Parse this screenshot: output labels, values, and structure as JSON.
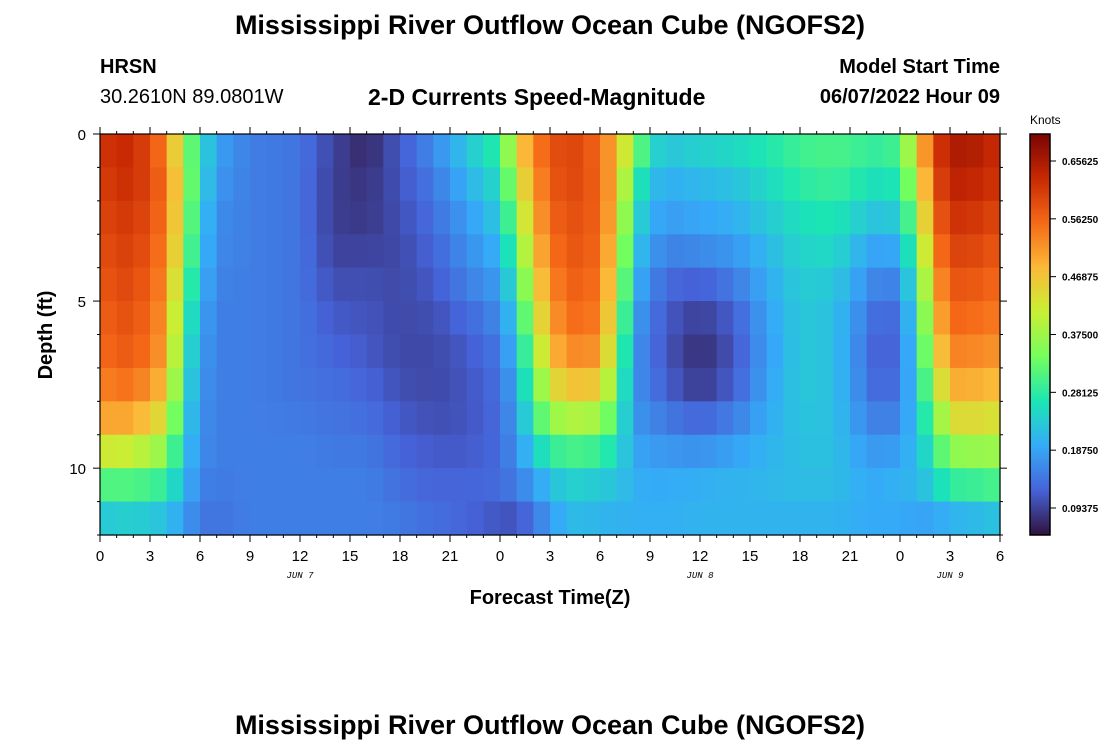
{
  "page": {
    "title_top": "Mississippi River Outflow Ocean Cube (NGOFS2)",
    "title_bottom": "Mississippi River Outflow Ocean Cube (NGOFS2)",
    "station": {
      "name": "HRSN",
      "coords": "30.2610N  89.0801W"
    },
    "plot_title": "2-D Currents Speed-Magnitude",
    "model_start": {
      "label": "Model Start Time",
      "value": "06/07/2022 Hour 09"
    }
  },
  "chart_data": {
    "type": "heatmap",
    "title": "2-D Currents Speed-Magnitude",
    "xlabel": "Forecast Time(Z)",
    "ylabel": "Depth (ft)",
    "x_unit": "hours from 06/07 00Z",
    "xlim": [
      0,
      54
    ],
    "ylim": [
      0,
      12
    ],
    "y_reversed": true,
    "x_tick_labels": [
      "0",
      "3",
      "6",
      "9",
      "12",
      "15",
      "18",
      "21",
      "0",
      "3",
      "6",
      "9",
      "12",
      "15",
      "18",
      "21",
      "0",
      "3",
      "6"
    ],
    "date_labels": [
      {
        "x": 12,
        "text": "JUN 7"
      },
      {
        "x": 36,
        "text": "JUN 8"
      },
      {
        "x": 51,
        "text": "JUN 9"
      }
    ],
    "y_ticks": [
      0,
      5,
      10
    ],
    "colorbar": {
      "unit": "Knots",
      "min": 0.05,
      "max": 0.7,
      "tick_labels": [
        "0.65625",
        "0.56250",
        "0.46875",
        "0.37500",
        "0.28125",
        "0.18750",
        "0.09375"
      ],
      "colors": [
        "#30123b",
        "#4662d8",
        "#35abf8",
        "#1be5b5",
        "#74fe5d",
        "#c9ef34",
        "#fbb938",
        "#f56918",
        "#c92903",
        "#7a0403"
      ]
    },
    "time_knots": [
      0,
      2,
      4,
      5,
      6,
      7,
      9,
      12,
      14,
      16,
      18,
      20,
      22,
      24,
      25,
      26,
      27,
      28,
      29,
      30,
      31,
      32,
      33,
      34,
      36,
      38,
      40,
      42,
      44,
      46,
      47,
      48,
      49,
      50,
      51,
      53,
      54
    ],
    "depth_knots": [
      0,
      1,
      2,
      3,
      4,
      5,
      6,
      7,
      8,
      9,
      10,
      11,
      12
    ],
    "speed_knots": [
      [
        0.62,
        0.61,
        0.6,
        0.59,
        0.58,
        0.57,
        0.56,
        0.55,
        0.52,
        0.48,
        0.36,
        0.26,
        0.2
      ],
      [
        0.63,
        0.63,
        0.62,
        0.61,
        0.6,
        0.59,
        0.58,
        0.57,
        0.53,
        0.47,
        0.35,
        0.27,
        0.21
      ],
      [
        0.52,
        0.55,
        0.55,
        0.54,
        0.53,
        0.52,
        0.51,
        0.5,
        0.45,
        0.4,
        0.32,
        0.25,
        0.19
      ],
      [
        0.36,
        0.4,
        0.4,
        0.38,
        0.36,
        0.32,
        0.3,
        0.28,
        0.26,
        0.24,
        0.22,
        0.2,
        0.17
      ],
      [
        0.26,
        0.26,
        0.24,
        0.23,
        0.22,
        0.2,
        0.19,
        0.18,
        0.17,
        0.17,
        0.16,
        0.15,
        0.14
      ],
      [
        0.19,
        0.18,
        0.17,
        0.16,
        0.16,
        0.15,
        0.15,
        0.15,
        0.15,
        0.15,
        0.15,
        0.14,
        0.14
      ],
      [
        0.15,
        0.15,
        0.15,
        0.15,
        0.15,
        0.15,
        0.15,
        0.15,
        0.15,
        0.15,
        0.15,
        0.15,
        0.15
      ],
      [
        0.14,
        0.14,
        0.14,
        0.14,
        0.14,
        0.14,
        0.14,
        0.14,
        0.14,
        0.15,
        0.15,
        0.15,
        0.15
      ],
      [
        0.1,
        0.09,
        0.09,
        0.09,
        0.1,
        0.11,
        0.12,
        0.13,
        0.14,
        0.14,
        0.15,
        0.15,
        0.15
      ],
      [
        0.06,
        0.08,
        0.08,
        0.09,
        0.1,
        0.11,
        0.11,
        0.12,
        0.13,
        0.14,
        0.15,
        0.15,
        0.15
      ],
      [
        0.12,
        0.11,
        0.11,
        0.1,
        0.1,
        0.1,
        0.1,
        0.1,
        0.11,
        0.12,
        0.13,
        0.14,
        0.15
      ],
      [
        0.17,
        0.15,
        0.14,
        0.13,
        0.12,
        0.11,
        0.1,
        0.1,
        0.1,
        0.11,
        0.12,
        0.13,
        0.14
      ],
      [
        0.24,
        0.21,
        0.19,
        0.17,
        0.16,
        0.14,
        0.12,
        0.11,
        0.11,
        0.11,
        0.12,
        0.13,
        0.12
      ],
      [
        0.3,
        0.27,
        0.24,
        0.22,
        0.19,
        0.17,
        0.15,
        0.14,
        0.13,
        0.13,
        0.13,
        0.13,
        0.09
      ],
      [
        0.46,
        0.42,
        0.38,
        0.34,
        0.3,
        0.26,
        0.23,
        0.21,
        0.19,
        0.18,
        0.16,
        0.14,
        0.08
      ],
      [
        0.54,
        0.52,
        0.5,
        0.48,
        0.45,
        0.42,
        0.38,
        0.34,
        0.3,
        0.26,
        0.2,
        0.16,
        0.12
      ],
      [
        0.58,
        0.57,
        0.56,
        0.55,
        0.53,
        0.51,
        0.49,
        0.46,
        0.4,
        0.33,
        0.24,
        0.19,
        0.17
      ],
      [
        0.6,
        0.6,
        0.59,
        0.58,
        0.57,
        0.56,
        0.54,
        0.5,
        0.43,
        0.34,
        0.26,
        0.22,
        0.2
      ],
      [
        0.58,
        0.59,
        0.58,
        0.58,
        0.57,
        0.56,
        0.55,
        0.51,
        0.44,
        0.35,
        0.26,
        0.22,
        0.21
      ],
      [
        0.55,
        0.56,
        0.56,
        0.56,
        0.55,
        0.54,
        0.53,
        0.49,
        0.42,
        0.32,
        0.25,
        0.21,
        0.2
      ],
      [
        0.48,
        0.48,
        0.47,
        0.45,
        0.43,
        0.41,
        0.38,
        0.35,
        0.32,
        0.28,
        0.24,
        0.21,
        0.2
      ],
      [
        0.4,
        0.32,
        0.28,
        0.25,
        0.22,
        0.2,
        0.18,
        0.17,
        0.17,
        0.18,
        0.2,
        0.2,
        0.2
      ],
      [
        0.28,
        0.23,
        0.21,
        0.19,
        0.17,
        0.15,
        0.14,
        0.14,
        0.15,
        0.17,
        0.19,
        0.2,
        0.2
      ],
      [
        0.24,
        0.21,
        0.19,
        0.17,
        0.14,
        0.12,
        0.11,
        0.11,
        0.13,
        0.16,
        0.19,
        0.2,
        0.2
      ],
      [
        0.26,
        0.22,
        0.2,
        0.18,
        0.14,
        0.1,
        0.08,
        0.07,
        0.1,
        0.15,
        0.19,
        0.21,
        0.2
      ],
      [
        0.27,
        0.23,
        0.21,
        0.19,
        0.16,
        0.13,
        0.11,
        0.11,
        0.13,
        0.17,
        0.2,
        0.21,
        0.2
      ],
      [
        0.28,
        0.26,
        0.24,
        0.22,
        0.2,
        0.19,
        0.18,
        0.18,
        0.19,
        0.2,
        0.21,
        0.21,
        0.2
      ],
      [
        0.3,
        0.29,
        0.27,
        0.25,
        0.24,
        0.23,
        0.23,
        0.23,
        0.23,
        0.22,
        0.22,
        0.21,
        0.2
      ],
      [
        0.31,
        0.3,
        0.28,
        0.26,
        0.24,
        0.22,
        0.22,
        0.22,
        0.22,
        0.22,
        0.22,
        0.21,
        0.2
      ],
      [
        0.3,
        0.28,
        0.25,
        0.21,
        0.18,
        0.16,
        0.14,
        0.14,
        0.15,
        0.17,
        0.19,
        0.2,
        0.19
      ],
      [
        0.3,
        0.27,
        0.24,
        0.2,
        0.16,
        0.13,
        0.11,
        0.11,
        0.13,
        0.16,
        0.19,
        0.2,
        0.19
      ],
      [
        0.32,
        0.29,
        0.26,
        0.22,
        0.18,
        0.15,
        0.14,
        0.14,
        0.15,
        0.17,
        0.2,
        0.21,
        0.18
      ],
      [
        0.46,
        0.42,
        0.38,
        0.34,
        0.3,
        0.27,
        0.25,
        0.24,
        0.23,
        0.22,
        0.21,
        0.2,
        0.17
      ],
      [
        0.6,
        0.58,
        0.56,
        0.53,
        0.5,
        0.47,
        0.44,
        0.4,
        0.35,
        0.3,
        0.26,
        0.22,
        0.16
      ],
      [
        0.66,
        0.65,
        0.63,
        0.61,
        0.59,
        0.57,
        0.55,
        0.52,
        0.47,
        0.4,
        0.32,
        0.25,
        0.16
      ],
      [
        0.65,
        0.64,
        0.62,
        0.6,
        0.58,
        0.56,
        0.54,
        0.51,
        0.47,
        0.41,
        0.33,
        0.26,
        0.17
      ],
      [
        0.62,
        0.62,
        0.6,
        0.58,
        0.56,
        0.55,
        0.53,
        0.5,
        0.45,
        0.4,
        0.34,
        0.27,
        0.18
      ]
    ]
  }
}
